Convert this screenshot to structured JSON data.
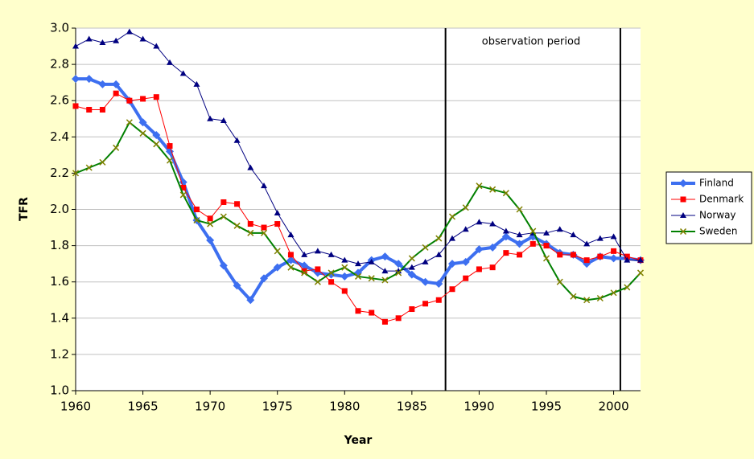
{
  "chart_data": {
    "type": "line",
    "x_label": "Year",
    "y_label": "TFR",
    "annotation": "observation period",
    "reference_lines": [
      1987.5,
      2000.5
    ],
    "x": [
      1960,
      1961,
      1962,
      1963,
      1964,
      1965,
      1966,
      1967,
      1968,
      1969,
      1970,
      1971,
      1972,
      1973,
      1974,
      1975,
      1976,
      1977,
      1978,
      1979,
      1980,
      1981,
      1982,
      1983,
      1984,
      1985,
      1986,
      1987,
      1988,
      1989,
      1990,
      1991,
      1992,
      1993,
      1994,
      1995,
      1996,
      1997,
      1998,
      1999,
      2000,
      2001,
      2002
    ],
    "xlim": [
      1960,
      2002
    ],
    "xticks": [
      1960,
      1965,
      1970,
      1975,
      1980,
      1985,
      1990,
      1995,
      2000
    ],
    "ylim": [
      1.0,
      3.0
    ],
    "yticks": [
      {
        "value": 1,
        "label": "1.0"
      },
      1.2,
      1.4,
      1.6,
      1.8,
      {
        "value": 2,
        "label": "2.0"
      },
      2.2,
      2.4,
      2.6,
      2.8,
      {
        "value": 3,
        "label": "3.0"
      }
    ],
    "grid": true,
    "legend": "right",
    "series": [
      {
        "name": "Finland",
        "color": "#3d6ff0",
        "marker": "diamond",
        "width": 4,
        "values": [
          2.72,
          2.72,
          2.69,
          2.69,
          2.6,
          2.48,
          2.41,
          2.32,
          2.15,
          1.94,
          1.83,
          1.69,
          1.58,
          1.5,
          1.62,
          1.68,
          1.72,
          1.69,
          1.65,
          1.64,
          1.63,
          1.65,
          1.72,
          1.74,
          1.7,
          1.64,
          1.6,
          1.59,
          1.7,
          1.71,
          1.78,
          1.79,
          1.85,
          1.81,
          1.85,
          1.81,
          1.76,
          1.75,
          1.7,
          1.74,
          1.73,
          1.73,
          1.72
        ]
      },
      {
        "name": "Denmark",
        "color": "#ff0000",
        "marker": "square",
        "width": 1,
        "values": [
          2.57,
          2.55,
          2.55,
          2.64,
          2.6,
          2.61,
          2.62,
          2.35,
          2.12,
          2.0,
          1.95,
          2.04,
          2.03,
          1.92,
          1.9,
          1.92,
          1.75,
          1.66,
          1.67,
          1.6,
          1.55,
          1.44,
          1.43,
          1.38,
          1.4,
          1.45,
          1.48,
          1.5,
          1.56,
          1.62,
          1.67,
          1.68,
          1.76,
          1.75,
          1.81,
          1.8,
          1.75,
          1.75,
          1.72,
          1.74,
          1.77,
          1.74,
          1.72
        ]
      },
      {
        "name": "Norway",
        "color": "#000080",
        "marker": "triangle",
        "width": 1,
        "values": [
          2.9,
          2.94,
          2.92,
          2.93,
          2.98,
          2.94,
          2.9,
          2.81,
          2.75,
          2.69,
          2.5,
          2.49,
          2.38,
          2.23,
          2.13,
          1.98,
          1.86,
          1.75,
          1.77,
          1.75,
          1.72,
          1.7,
          1.71,
          1.66,
          1.66,
          1.68,
          1.71,
          1.75,
          1.84,
          1.89,
          1.93,
          1.92,
          1.88,
          1.86,
          1.87,
          1.87,
          1.89,
          1.86,
          1.81,
          1.84,
          1.85,
          1.72,
          1.72
        ]
      },
      {
        "name": "Sweden",
        "color": "#008000",
        "marker": "x",
        "width": 2,
        "values": [
          2.2,
          2.23,
          2.26,
          2.34,
          2.48,
          2.42,
          2.36,
          2.27,
          2.08,
          1.94,
          1.92,
          1.96,
          1.91,
          1.87,
          1.87,
          1.77,
          1.68,
          1.65,
          1.6,
          1.65,
          1.68,
          1.63,
          1.62,
          1.61,
          1.65,
          1.73,
          1.79,
          1.84,
          1.96,
          2.01,
          2.13,
          2.11,
          2.09,
          2.0,
          1.88,
          1.73,
          1.6,
          1.52,
          1.5,
          1.51,
          1.54,
          1.57,
          1.65
        ]
      }
    ]
  }
}
